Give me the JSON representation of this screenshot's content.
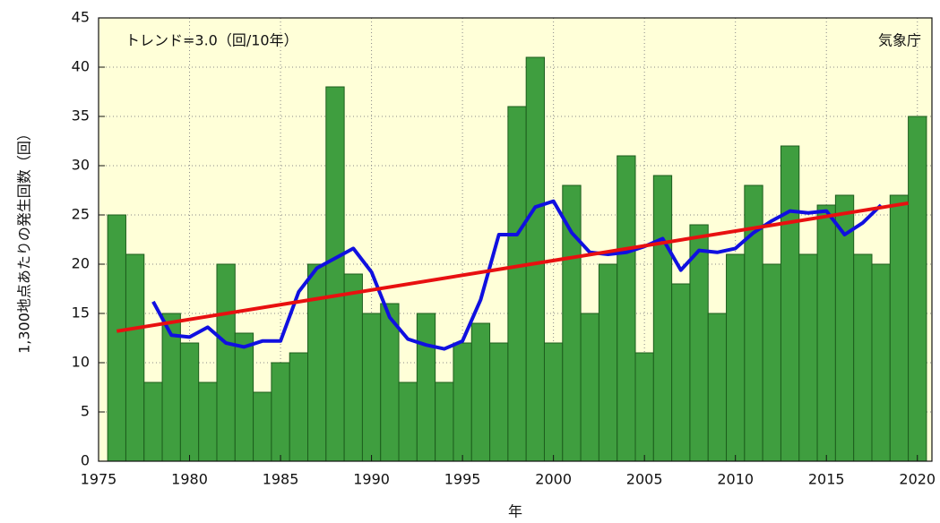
{
  "chart_data": {
    "type": "bar",
    "annotations": [
      "トレンド=3.0（回/10年）",
      "気象庁"
    ],
    "y_label": "1,300地点あたりの発生回数（回）",
    "x_label": "年",
    "x": [
      1976,
      1977,
      1978,
      1979,
      1980,
      1981,
      1982,
      1983,
      1984,
      1985,
      1986,
      1987,
      1988,
      1989,
      1990,
      1991,
      1992,
      1993,
      1994,
      1995,
      1996,
      1997,
      1998,
      1999,
      2000,
      2001,
      2002,
      2003,
      2004,
      2005,
      2006,
      2007,
      2008,
      2009,
      2010,
      2011,
      2012,
      2013,
      2014,
      2015,
      2016,
      2017,
      2018,
      2019,
      2020
    ],
    "values": [
      25,
      21,
      8,
      15,
      12,
      8,
      20,
      13,
      7,
      10,
      11,
      20,
      38,
      19,
      15,
      16,
      8,
      15,
      8,
      12,
      14,
      12,
      36,
      41,
      12,
      28,
      15,
      20,
      31,
      11,
      29,
      18,
      24,
      15,
      21,
      28,
      20,
      32,
      21,
      26,
      27,
      21,
      20,
      27,
      35
    ],
    "color": "#3f9e3f",
    "moving_average": {
      "x": [
        1978,
        1979,
        1980,
        1981,
        1982,
        1983,
        1984,
        1985,
        1986,
        1987,
        1988,
        1989,
        1990,
        1991,
        1992,
        1993,
        1994,
        1995,
        1996,
        1997,
        1998,
        1999,
        2000,
        2001,
        2002,
        2003,
        2004,
        2005,
        2006,
        2007,
        2008,
        2009,
        2010,
        2011,
        2012,
        2013,
        2014,
        2015,
        2016,
        2017,
        2018
      ],
      "values": [
        16.2,
        12.8,
        12.6,
        13.6,
        12,
        11.6,
        12.2,
        12.2,
        17.2,
        19.6,
        20.6,
        21.6,
        19.2,
        14.6,
        12.4,
        11.8,
        11.4,
        12.2,
        16.4,
        23,
        23,
        25.8,
        26.4,
        23.2,
        21.2,
        21,
        21.2,
        21.8,
        22.6,
        19.4,
        21.4,
        21.2,
        21.6,
        23.2,
        24.4,
        25.4,
        25.2,
        25.4,
        23,
        24.2,
        26
      ],
      "color": "#1010e0"
    },
    "trend": {
      "x": [
        1976,
        2019.5
      ],
      "values": [
        13.2,
        26.2
      ],
      "color": "#e81010"
    },
    "xlim": [
      1975,
      2020.8
    ],
    "xticks": [
      1975,
      1980,
      1985,
      1990,
      1995,
      2000,
      2005,
      2010,
      2015,
      2020
    ],
    "ylim": [
      0,
      45
    ],
    "yticks": [
      0,
      5,
      10,
      15,
      20,
      25,
      30,
      35,
      40,
      45
    ],
    "grid": true,
    "background": "#ffffd8"
  }
}
